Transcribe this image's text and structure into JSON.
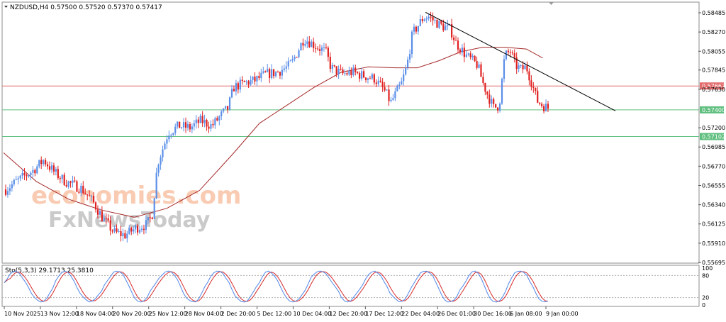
{
  "chart_data": {
    "type": "candlestick",
    "symbol": "NZDUSD,H4",
    "ohlc_header": "0.57500 0.57520 0.57370 0.57417",
    "colors": {
      "bull": "#5b8fe8",
      "bear": "#e02020",
      "ma": "#a52a2a",
      "red_level": "#e26a6a",
      "green_level": "#5fbf7f",
      "trendline": "#000000",
      "stoch_main": "#4f86e8",
      "stoch_signal": "#d62a2a",
      "grid_border": "#888888"
    },
    "y_ticks": [
      "0.58485",
      "0.58270",
      "0.58055",
      "0.57845",
      "0.57630",
      "0.57200",
      "0.56985",
      "0.56770",
      "0.56555",
      "0.56340",
      "0.56125",
      "0.55910",
      "0.55695"
    ],
    "ylim": [
      0.55695,
      0.58485
    ],
    "x_ticks": [
      "10 Nov 2025",
      "13 Nov 12:00",
      "18 Nov 04:00",
      "20 Nov 20:00",
      "25 Nov 12:00",
      "28 Nov 04:00",
      "2 Dec 20:00",
      "5 Dec 12:00",
      "10 Dec 04:00",
      "12 Dec 20:00",
      "17 Dec 12:00",
      "22 Dec 04:00",
      "26 Dec 01:00",
      "30 Dec 16:00",
      "6 Jan 08:00",
      "9 Jan 00:00"
    ],
    "levels": [
      {
        "value": 0.57667,
        "label": "0.57667",
        "color": "#e26a6a"
      },
      {
        "value": 0.574,
        "label": "0.57400",
        "color": "#5fbf7f"
      },
      {
        "value": 0.57102,
        "label": "0.57102",
        "color": "#5fbf7f"
      }
    ],
    "trendline": {
      "from": {
        "bar": 0.775,
        "price": 0.5849
      },
      "to": {
        "bar": 1.0,
        "price": 0.5739
      }
    },
    "price_path": [
      [
        0.0,
        0.5651
      ],
      [
        0.02,
        0.566
      ],
      [
        0.05,
        0.5672
      ],
      [
        0.07,
        0.5684
      ],
      [
        0.09,
        0.567
      ],
      [
        0.11,
        0.566
      ],
      [
        0.14,
        0.5652
      ],
      [
        0.16,
        0.5638
      ],
      [
        0.18,
        0.5618
      ],
      [
        0.2,
        0.5603
      ],
      [
        0.22,
        0.56
      ],
      [
        0.24,
        0.5608
      ],
      [
        0.26,
        0.5612
      ],
      [
        0.27,
        0.5622
      ],
      [
        0.28,
        0.568
      ],
      [
        0.3,
        0.5715
      ],
      [
        0.32,
        0.5722
      ],
      [
        0.34,
        0.572
      ],
      [
        0.36,
        0.5728
      ],
      [
        0.38,
        0.5722
      ],
      [
        0.4,
        0.5736
      ],
      [
        0.41,
        0.5742
      ],
      [
        0.42,
        0.5765
      ],
      [
        0.44,
        0.577
      ],
      [
        0.46,
        0.5773
      ],
      [
        0.48,
        0.578
      ],
      [
        0.5,
        0.5782
      ],
      [
        0.52,
        0.5788
      ],
      [
        0.53,
        0.5795
      ],
      [
        0.55,
        0.582
      ],
      [
        0.57,
        0.5812
      ],
      [
        0.59,
        0.5805
      ],
      [
        0.6,
        0.5787
      ],
      [
        0.62,
        0.578
      ],
      [
        0.64,
        0.5782
      ],
      [
        0.66,
        0.5778
      ],
      [
        0.68,
        0.5775
      ],
      [
        0.7,
        0.576
      ],
      [
        0.71,
        0.5748
      ],
      [
        0.73,
        0.577
      ],
      [
        0.74,
        0.579
      ],
      [
        0.75,
        0.5825
      ],
      [
        0.77,
        0.5843
      ],
      [
        0.78,
        0.5844
      ],
      [
        0.8,
        0.5835
      ],
      [
        0.82,
        0.583
      ],
      [
        0.83,
        0.5815
      ],
      [
        0.85,
        0.58
      ],
      [
        0.87,
        0.579
      ],
      [
        0.88,
        0.577
      ],
      [
        0.89,
        0.5755
      ],
      [
        0.9,
        0.5742
      ],
      [
        0.91,
        0.5745
      ],
      [
        0.92,
        0.58
      ],
      [
        0.93,
        0.5806
      ],
      [
        0.94,
        0.579
      ],
      [
        0.95,
        0.5785
      ],
      [
        0.96,
        0.5788
      ],
      [
        0.97,
        0.577
      ],
      [
        0.98,
        0.575
      ],
      [
        0.99,
        0.5745
      ],
      [
        1.0,
        0.5742
      ]
    ],
    "ma_path": [
      [
        0.0,
        0.5692
      ],
      [
        0.06,
        0.566
      ],
      [
        0.12,
        0.564
      ],
      [
        0.18,
        0.5628
      ],
      [
        0.24,
        0.562
      ],
      [
        0.3,
        0.563
      ],
      [
        0.36,
        0.565
      ],
      [
        0.42,
        0.569
      ],
      [
        0.47,
        0.5725
      ],
      [
        0.52,
        0.5745
      ],
      [
        0.57,
        0.5765
      ],
      [
        0.62,
        0.5782
      ],
      [
        0.67,
        0.5788
      ],
      [
        0.72,
        0.5787
      ],
      [
        0.76,
        0.5787
      ],
      [
        0.8,
        0.5795
      ],
      [
        0.84,
        0.5805
      ],
      [
        0.88,
        0.581
      ],
      [
        0.92,
        0.581
      ],
      [
        0.96,
        0.5808
      ],
      [
        0.99,
        0.5798
      ]
    ],
    "watermark": {
      "line1": "economies.com",
      "line2": "FxNewsToday"
    },
    "stochastic": {
      "label": "Sto(5,3,3) 29.1713 25.3810",
      "ylim": [
        0,
        100
      ],
      "y_ticks": [
        "100",
        "80",
        "20",
        "0"
      ],
      "levels": [
        80,
        20
      ]
    }
  }
}
